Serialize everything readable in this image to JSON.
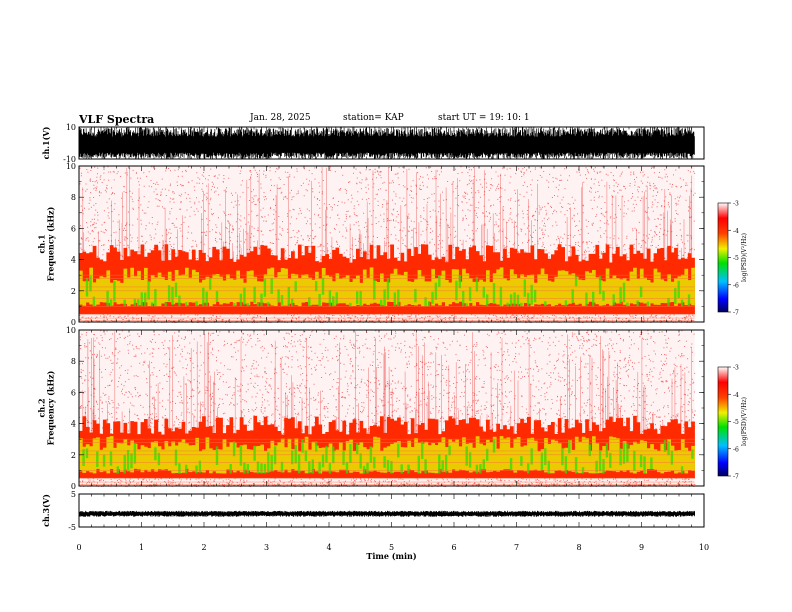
{
  "header": {
    "title": "VLF Spectra",
    "date": "Jan. 28, 2025",
    "station": "station= KAP",
    "start": "start UT =  19: 10: 1"
  },
  "colors": {
    "background": "#ffffff",
    "trace": "#000000",
    "noise": "#e00000",
    "band_red": "#ff2a00",
    "band_yellow": "#e8e800",
    "band_green": "#30e000"
  },
  "chart_data": [
    {
      "type": "line",
      "name": "ch1-waveform",
      "ylabel": "ch.1(V)",
      "ylim": [
        -10,
        10
      ],
      "yticks": [
        "10",
        "-10"
      ],
      "xlim": [
        0,
        10
      ],
      "description_values": "dense broadband waveform saturating between about -10 and 10 V over 0-9.85 min"
    },
    {
      "type": "heatmap",
      "name": "ch1-spectrogram",
      "ylabel": "ch.1\nFrequency (kHz)",
      "ylim": [
        0,
        10
      ],
      "yticks": [
        "0",
        "2",
        "4",
        "6",
        "8",
        "10"
      ],
      "xlim": [
        0,
        10
      ],
      "colorbar": {
        "label": "log(PSD)(V²/Hz)",
        "range": [
          -7,
          -3
        ],
        "ticks": [
          "-3",
          "-4",
          "-5",
          "-6",
          "-7"
        ]
      },
      "bands_khz": {
        "green_yellow": [
          1.0,
          3.5
        ],
        "red": [
          0.5,
          5.0
        ],
        "noise_top": 10.0
      },
      "data_end_min": 9.85
    },
    {
      "type": "heatmap",
      "name": "ch2-spectrogram",
      "ylabel": "ch.2\nFrequency (kHz)",
      "ylim": [
        0,
        10
      ],
      "yticks": [
        "0",
        "2",
        "4",
        "6",
        "8",
        "10"
      ],
      "xlim": [
        0,
        10
      ],
      "colorbar": {
        "label": "log(PSD)(V²/Hz)",
        "range": [
          -7,
          -3
        ],
        "ticks": [
          "-3",
          "-4",
          "-5",
          "-6",
          "-7"
        ]
      },
      "bands_khz": {
        "green_yellow": [
          0.8,
          3.2
        ],
        "red": [
          0.5,
          4.5
        ],
        "noise_top": 10.0
      },
      "data_end_min": 9.85
    },
    {
      "type": "line",
      "name": "ch3-waveform",
      "ylabel": "ch.3(V)",
      "ylim": [
        -5,
        5
      ],
      "yticks": [
        "5",
        "-5"
      ],
      "xlim": [
        0,
        10
      ],
      "xlabel": "Time (min)",
      "xticks": [
        "0",
        "1",
        "2",
        "3",
        "4",
        "5",
        "6",
        "7",
        "8",
        "9",
        "10"
      ],
      "description_values": "narrow trace near -1 V with about +/-0.5 V amplitude"
    }
  ]
}
